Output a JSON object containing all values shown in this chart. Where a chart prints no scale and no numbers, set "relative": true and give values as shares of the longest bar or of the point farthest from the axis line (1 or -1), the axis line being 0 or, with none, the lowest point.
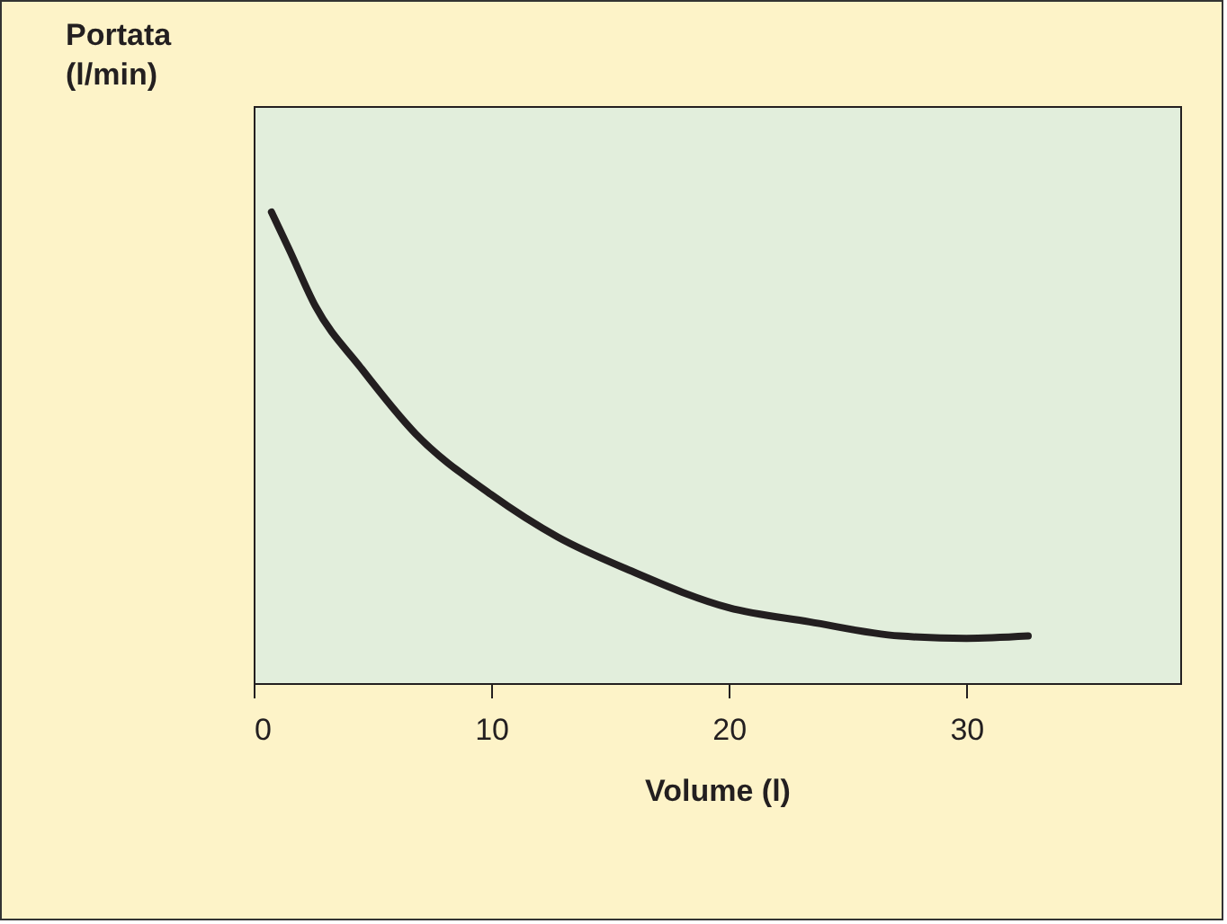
{
  "chart_data": {
    "type": "line",
    "relative": true,
    "xlabel": "Volume (l)",
    "ylabel": "Portata (l/min)",
    "x": [
      0.75,
      1.5,
      2.6,
      4.5,
      6.8,
      10,
      12.8,
      15.8,
      20,
      23.4,
      27.2,
      30,
      32.6
    ],
    "series": [
      {
        "color": "#231f20",
        "values": [
          1,
          0.92,
          0.8,
          0.67,
          0.53,
          0.4,
          0.31,
          0.24,
          0.16,
          0.13,
          0.1,
          0.095,
          0.1
        ]
      }
    ],
    "xlim": [
      0,
      39
    ],
    "xticks": [
      0,
      10,
      20,
      30
    ],
    "grid": false,
    "marker": "none",
    "line_style": "solid"
  }
}
